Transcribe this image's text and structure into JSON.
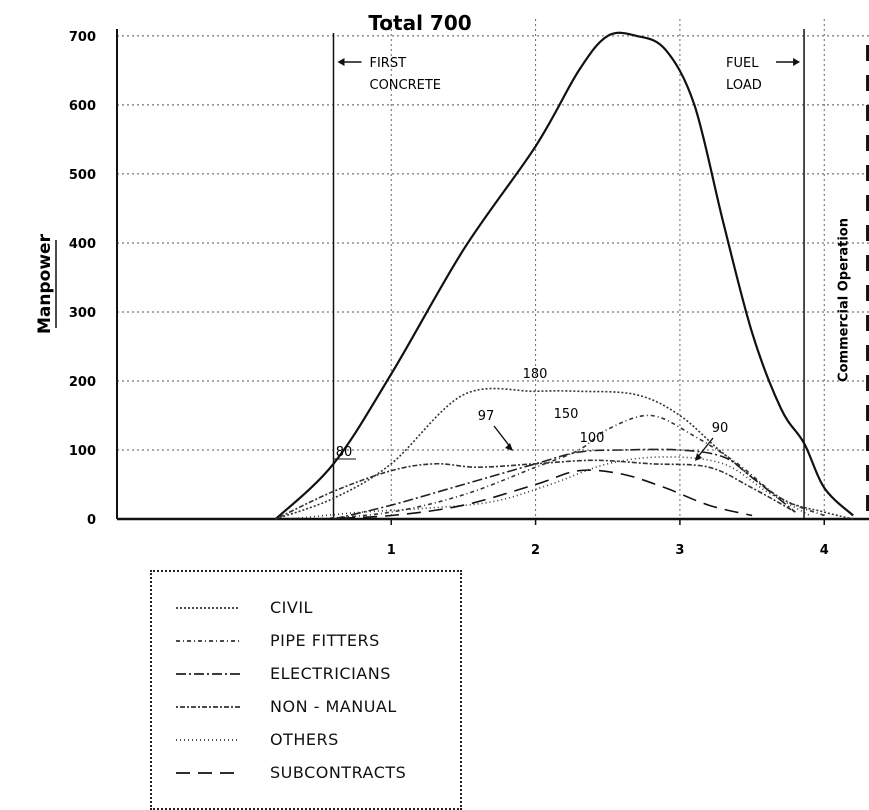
{
  "chart_data": {
    "type": "line",
    "title": "Total 700",
    "ylabel": "Manpower",
    "xlabel": "",
    "xlim": [
      -0.9,
      4.31
    ],
    "ylim": [
      0,
      710
    ],
    "x_ticks": [
      "1",
      "2",
      "3",
      "4"
    ],
    "y_ticks": [
      "0",
      "100",
      "200",
      "300",
      "400",
      "500",
      "600",
      "700"
    ],
    "grid": true,
    "annotations": {
      "first_concrete": [
        "FIRST",
        "CONCRETE"
      ],
      "fuel_load": [
        "FUEL",
        "LOAD"
      ],
      "commercial_operation": "Commercial Operation",
      "peak_labels": [
        "180",
        "150",
        "100",
        "97",
        "90",
        "80"
      ]
    },
    "vertical_markers": {
      "first_concrete": 0.6,
      "fuel_load": 3.86,
      "commercial_operation": 4.3
    },
    "series": [
      {
        "name": "TOTAL",
        "style": "solid",
        "color": "#111111",
        "x": [
          0.2,
          0.6,
          1.0,
          1.5,
          2.0,
          2.3,
          2.5,
          2.7,
          2.9,
          3.1,
          3.3,
          3.5,
          3.7,
          3.86,
          4.0,
          4.2
        ],
        "y": [
          0,
          80,
          210,
          390,
          540,
          650,
          700,
          700,
          680,
          600,
          430,
          270,
          160,
          110,
          45,
          5
        ]
      },
      {
        "name": "CIVIL",
        "style": "dotted-dense",
        "color": "#333333",
        "x": [
          0.2,
          0.6,
          1.0,
          1.5,
          2.0,
          2.3,
          2.7,
          3.0,
          3.3,
          3.7,
          4.0,
          4.2
        ],
        "y": [
          0,
          30,
          80,
          180,
          185,
          185,
          180,
          150,
          95,
          30,
          10,
          0
        ]
      },
      {
        "name": "PIPE FITTERS",
        "style": "dash-dot-fine",
        "color": "#333333",
        "x": [
          0.5,
          1.0,
          1.5,
          2.0,
          2.3,
          2.5,
          2.8,
          3.1,
          3.4,
          3.7,
          4.0
        ],
        "y": [
          0,
          10,
          35,
          75,
          100,
          130,
          150,
          120,
          80,
          30,
          5
        ]
      },
      {
        "name": "ELECTRICIANS",
        "style": "dash-dot",
        "color": "#222222",
        "x": [
          0.6,
          1.0,
          1.5,
          2.0,
          2.3,
          2.6,
          3.0,
          3.3,
          3.5,
          3.8
        ],
        "y": [
          0,
          20,
          50,
          80,
          97,
          100,
          100,
          90,
          60,
          10
        ]
      },
      {
        "name": "NON - MANUAL",
        "style": "dot-dash-fine",
        "color": "#333333",
        "x": [
          0.2,
          0.6,
          1.0,
          1.3,
          1.6,
          2.0,
          2.4,
          2.8,
          3.2,
          3.5,
          3.8
        ],
        "y": [
          0,
          40,
          70,
          80,
          75,
          80,
          85,
          80,
          75,
          45,
          10
        ]
      },
      {
        "name": "OTHERS",
        "style": "dotted",
        "color": "#333333",
        "x": [
          0.3,
          0.8,
          1.2,
          1.7,
          2.1,
          2.5,
          2.9,
          3.3,
          3.6,
          3.9
        ],
        "y": [
          0,
          10,
          15,
          25,
          50,
          80,
          90,
          80,
          40,
          5
        ]
      },
      {
        "name": "SUBCONTRACTS",
        "style": "long-dash",
        "color": "#111111",
        "x": [
          0.5,
          1.0,
          1.5,
          2.0,
          2.3,
          2.6,
          2.9,
          3.2,
          3.5
        ],
        "y": [
          0,
          5,
          20,
          50,
          70,
          65,
          45,
          20,
          5
        ]
      }
    ]
  }
}
